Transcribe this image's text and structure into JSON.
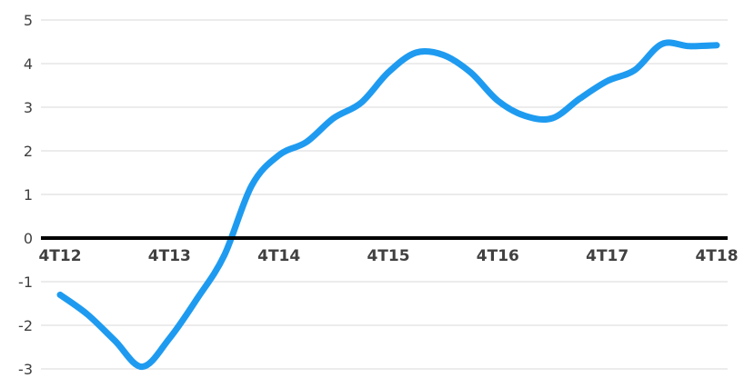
{
  "chart_data": {
    "type": "line",
    "title": "",
    "xlabel": "",
    "ylabel": "",
    "ylim": [
      -3,
      5
    ],
    "yticks": [
      "5",
      "4",
      "3",
      "2",
      "1",
      "0",
      "-1",
      "-2",
      "-3"
    ],
    "grid": true,
    "categories": [
      "4T12",
      "4T13",
      "4T14",
      "4T15",
      "4T16",
      "4T17",
      "4T18"
    ],
    "series": [
      {
        "color": "#1e9bf0",
        "x": [
          0,
          0.25,
          0.5,
          0.75,
          1,
          1.25,
          1.5,
          1.75,
          2,
          2.25,
          2.5,
          2.75,
          3,
          3.25,
          3.5,
          3.75,
          4,
          4.25,
          4.5,
          4.75,
          5,
          5.25,
          5.5,
          5.75,
          6
        ],
        "values": [
          -1.3,
          -1.75,
          -2.35,
          -2.95,
          -2.3,
          -1.4,
          -0.4,
          1.2,
          1.9,
          2.2,
          2.75,
          3.1,
          3.8,
          4.25,
          4.2,
          3.8,
          3.15,
          2.8,
          2.75,
          3.2,
          3.6,
          3.85,
          4.45,
          4.4,
          4.42
        ]
      }
    ],
    "colors": {
      "grid": "#d9d9d9",
      "zero_axis": "#000000",
      "ticks": "#404040"
    }
  }
}
